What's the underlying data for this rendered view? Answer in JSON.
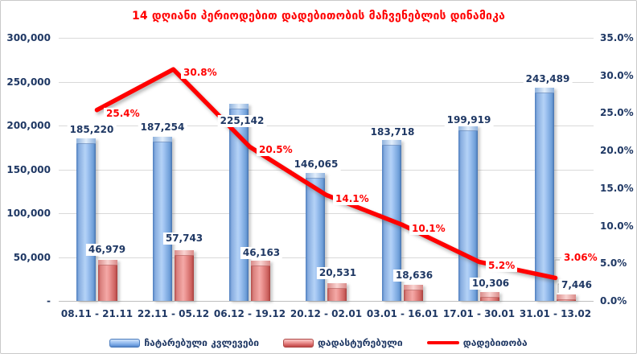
{
  "title": "14 დღიანი პერიოდებით დადებითობის მაჩვენებლის დინამიკა",
  "chart_data": {
    "type": "combo-bar-line",
    "title": "14 დღიანი პერიოდებით დადებითობის მაჩვენებლის დინამიკა",
    "categories": [
      "08.11 - 21.11",
      "22.11 - 05.12",
      "06.12 - 19.12",
      "20.12 - 02.01",
      "03.01 - 16.01",
      "17.01 - 30.01",
      "31.01 - 13.02"
    ],
    "series": [
      {
        "name": "ჩატარებული კვლევები",
        "type": "bar",
        "axis": "left",
        "values": [
          185220,
          187254,
          225142,
          146065,
          183718,
          199919,
          243489
        ],
        "labels": [
          "185,220",
          "187,254",
          "225,142",
          "146,065",
          "183,718",
          "199,919",
          "243,489"
        ]
      },
      {
        "name": "დადასტურებული",
        "type": "bar",
        "axis": "left",
        "values": [
          46979,
          57743,
          46163,
          20531,
          18636,
          10306,
          7446
        ],
        "labels": [
          "46,979",
          "57,743",
          "46,163",
          "20,531",
          "18,636",
          "10,306",
          "7,446"
        ]
      },
      {
        "name": "დადებითობა",
        "type": "line",
        "axis": "right",
        "values": [
          25.4,
          30.8,
          20.5,
          14.1,
          10.1,
          5.2,
          3.06
        ],
        "labels": [
          "25.4%",
          "30.8%",
          "20.5%",
          "14.1%",
          "10.1%",
          "5.2%",
          "3.06%"
        ]
      }
    ],
    "left_axis": {
      "min": 0,
      "max": 300000,
      "tick_labels": [
        "300,000",
        "250,000",
        "200,000",
        "150,000",
        "100,000",
        "50,000",
        "-"
      ]
    },
    "right_axis": {
      "min": 0,
      "max": 35,
      "tick_labels": [
        "35.0%",
        "30.0%",
        "25.0%",
        "20.0%",
        "15.0%",
        "10.0%",
        "5.0%",
        "0.0%"
      ]
    },
    "grid": "horizontal",
    "legend_position": "bottom"
  },
  "legend": {
    "items": [
      {
        "label": "ჩატარებული კვლევები",
        "swatch": "bar-blue"
      },
      {
        "label": "დადასტურებული",
        "swatch": "bar-red"
      },
      {
        "label": "დადებითობა",
        "swatch": "line-red"
      }
    ]
  },
  "colors": {
    "title": "#FF0000",
    "axis_text": "#1F3864",
    "value_label_text": "#1F3864",
    "pct_label_text": "#FF0000",
    "gridline": "#D9D9D9",
    "axis_line": "#BFBFBF",
    "bar_blue": "#6D9EE0",
    "bar_blue_edge": "#4D7DBE",
    "bar_red": "#F08A8A",
    "bar_red_edge": "#B04A47",
    "line": "#FF0000",
    "frame_border": "#C9C9C9"
  }
}
